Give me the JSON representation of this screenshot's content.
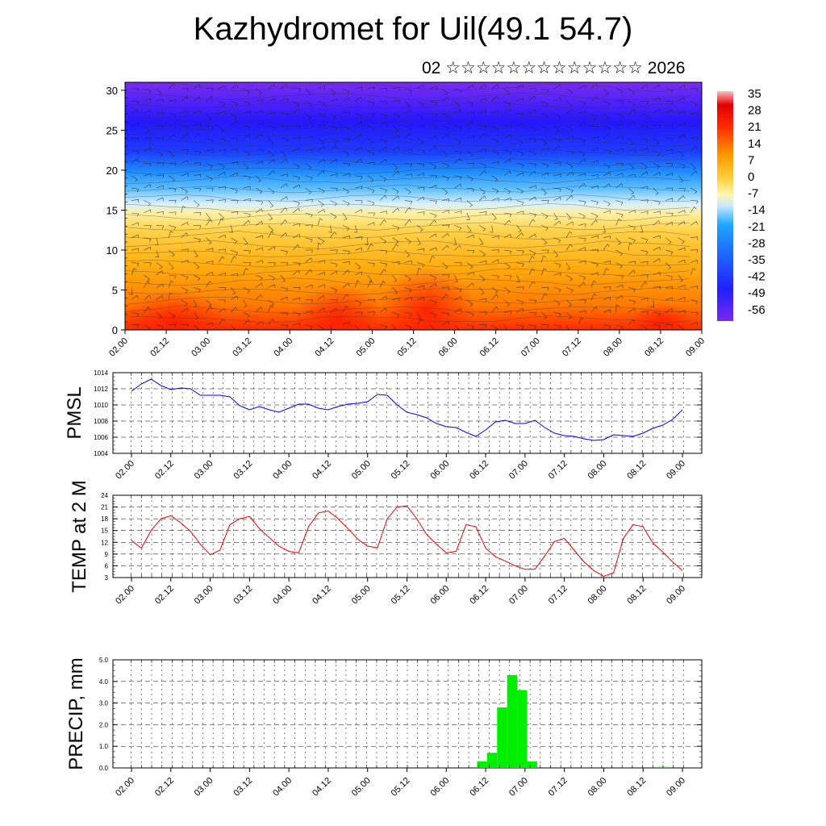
{
  "header": {
    "title": "Kazhydromet for Uil(49.1 54.7)",
    "subtitle": "02 ☆☆☆☆☆☆☆☆☆☆☆☆☆ 2026"
  },
  "time_labels": [
    "02.00",
    "02.12",
    "03.00",
    "03.12",
    "04.00",
    "04.12",
    "05.00",
    "05.12",
    "06.00",
    "06.12",
    "07.00",
    "07.12",
    "08.00",
    "08.12",
    "09.00"
  ],
  "chart_data": [
    {
      "type": "heatmap",
      "title": "",
      "x": [
        "02.00",
        "02.12",
        "03.00",
        "03.12",
        "04.00",
        "04.12",
        "05.00",
        "05.12",
        "06.00",
        "06.12",
        "07.00",
        "07.12",
        "08.00",
        "08.12",
        "09.00"
      ],
      "y_ticks": [
        0,
        5,
        10,
        15,
        20,
        25,
        30
      ],
      "ylim": [
        0,
        31
      ],
      "colorbar_labels": [
        "35",
        "28",
        "21",
        "14",
        "7",
        "0",
        "-7",
        "-14",
        "-21",
        "-28",
        "-35",
        "-42",
        "-49",
        "-56"
      ],
      "colors": {
        "warm": "#ff2200",
        "orange": "#ffa500",
        "yellow": "#ffef96",
        "light_blue": "#c8e8ff",
        "cyan": "#1ea0ff",
        "blue": "#1e32ff",
        "violet": "#7a28ee"
      }
    },
    {
      "type": "line",
      "ylabel": "PMSL",
      "y_ticks": [
        "1004",
        "1006",
        "1008",
        "1010",
        "1012",
        "1014"
      ],
      "ylim": [
        1004,
        1014
      ],
      "color": "#0000ee",
      "values": [
        1011.7,
        1012.6,
        1013.2,
        1012.4,
        1011.9,
        1012.1,
        1012.0,
        1011.2,
        1011.2,
        1011.2,
        1011.0,
        1009.9,
        1009.4,
        1009.8,
        1009.4,
        1009.1,
        1009.6,
        1010.1,
        1010.1,
        1009.6,
        1009.4,
        1009.8,
        1010.1,
        1010.2,
        1010.4,
        1011.3,
        1011.2,
        1010.0,
        1009.1,
        1008.8,
        1008.4,
        1007.7,
        1007.3,
        1007.2,
        1006.6,
        1006.1,
        1006.9,
        1007.9,
        1008.1,
        1007.7,
        1007.7,
        1008.1,
        1007.2,
        1006.5,
        1006.2,
        1006.1,
        1005.8,
        1005.6,
        1005.7,
        1006.3,
        1006.2,
        1006.1,
        1006.5,
        1007.1,
        1007.5,
        1008.2,
        1009.4
      ]
    },
    {
      "type": "line",
      "ylabel": "TEMP at 2 M",
      "y_ticks": [
        "3",
        "6",
        "9",
        "12",
        "15",
        "18",
        "21",
        "24"
      ],
      "ylim": [
        3,
        24
      ],
      "color": "#ee0000",
      "values": [
        12.5,
        10.5,
        15.0,
        18.0,
        18.8,
        17.0,
        14.8,
        11.5,
        8.8,
        10.0,
        16.5,
        18.0,
        18.6,
        15.5,
        13.2,
        11.0,
        9.7,
        9.3,
        16.0,
        19.5,
        20.0,
        18.0,
        15.5,
        12.8,
        11.0,
        10.6,
        18.0,
        21.0,
        21.3,
        18.0,
        14.0,
        11.5,
        9.3,
        9.7,
        16.5,
        16.0,
        10.5,
        8.3,
        7.2,
        6.0,
        5.1,
        5.1,
        8.5,
        12.2,
        13.0,
        10.0,
        7.0,
        4.8,
        3.3,
        4.2,
        13.0,
        16.5,
        16.0,
        11.8,
        9.5,
        7.0,
        4.8
      ]
    },
    {
      "type": "bar",
      "ylabel": "PRECIP, mm",
      "y_ticks": [
        "0.0",
        "1.0",
        "2.0",
        "3.0",
        "4.0",
        "5.0"
      ],
      "ylim": [
        0,
        5
      ],
      "color": "#00ee00",
      "values": [
        0,
        0,
        0,
        0,
        0,
        0,
        0,
        0,
        0,
        0,
        0,
        0,
        0,
        0,
        0,
        0,
        0,
        0,
        0,
        0,
        0,
        0,
        0,
        0,
        0,
        0,
        0,
        0,
        0,
        0,
        0,
        0,
        0,
        0,
        0,
        0.3,
        0.7,
        2.8,
        4.3,
        3.6,
        0.3,
        0,
        0,
        0,
        0,
        0,
        0,
        0,
        0,
        0,
        0,
        0,
        0,
        0.05,
        0,
        0
      ]
    }
  ]
}
